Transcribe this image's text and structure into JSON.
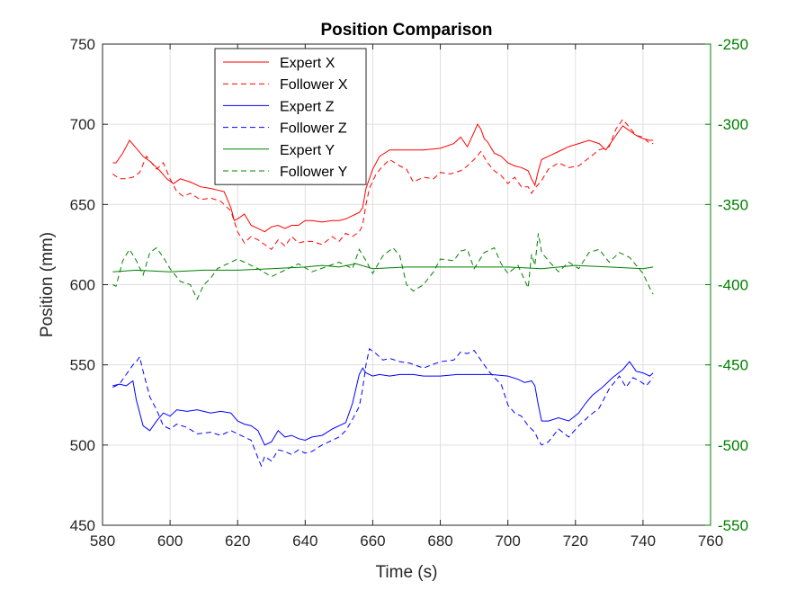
{
  "chart_data": {
    "type": "line",
    "title": "Position Comparison",
    "xlabel": "Time (s)",
    "ylabel": "Position (mm)",
    "ylabel_right": "",
    "xlim": [
      580,
      760
    ],
    "ylim": [
      450,
      750
    ],
    "ylim_right": [
      -550,
      -250
    ],
    "xticks": [
      580,
      600,
      620,
      640,
      660,
      680,
      700,
      720,
      740,
      760
    ],
    "yticks": [
      450,
      500,
      550,
      600,
      650,
      700,
      750
    ],
    "yticks_right": [
      -550,
      -500,
      -450,
      -400,
      -350,
      -300,
      -250
    ],
    "grid": true,
    "legend_position": "top-left",
    "series": [
      {
        "name": "Expert X",
        "axis": "left",
        "color": "#ff0000",
        "dash": "solid",
        "x": [
          583,
          584,
          586,
          588,
          590,
          592,
          594,
          597,
          599,
          601,
          603,
          606,
          609,
          612,
          614,
          616,
          618,
          619,
          620,
          622,
          624,
          626,
          628,
          630,
          632,
          634,
          636,
          638,
          640,
          642,
          645,
          648,
          650,
          652,
          654,
          655,
          656,
          657,
          658,
          660,
          662,
          665,
          668,
          671,
          675,
          680,
          684,
          686,
          688,
          690,
          691,
          692,
          693,
          694,
          696,
          698,
          700,
          702,
          704,
          706,
          707,
          708,
          709,
          710,
          712,
          715,
          718,
          721,
          724,
          727,
          729,
          731,
          732,
          734,
          736,
          738,
          740,
          742,
          743
        ],
        "y": [
          676,
          676,
          682,
          690,
          685,
          680,
          677,
          671,
          666,
          663,
          666,
          664,
          661,
          660,
          659,
          658,
          648,
          640,
          641,
          644,
          637,
          635,
          633,
          636,
          637,
          635,
          637,
          637,
          640,
          640,
          639,
          640,
          640,
          641,
          643,
          644,
          645,
          648,
          660,
          672,
          680,
          684,
          684,
          684,
          684,
          685,
          688,
          692,
          686,
          695,
          700,
          697,
          691,
          689,
          682,
          680,
          676,
          674,
          673,
          671,
          666,
          662,
          671,
          678,
          680,
          683,
          686,
          688,
          690,
          688,
          684,
          690,
          693,
          699,
          696,
          693,
          691,
          690,
          690
        ]
      },
      {
        "name": "Follower X",
        "axis": "left",
        "color": "#ff0000",
        "dash": "dashed",
        "x": [
          583,
          585,
          587,
          589,
          591,
          593,
          596,
          598,
          600,
          602,
          604,
          606,
          609,
          612,
          615,
          618,
          620,
          622,
          624,
          626,
          628,
          630,
          632,
          634,
          636,
          638,
          640,
          642,
          645,
          648,
          650,
          652,
          654,
          656,
          657,
          658,
          659,
          661,
          663,
          665,
          668,
          670,
          672,
          675,
          678,
          680,
          683,
          686,
          688,
          690,
          692,
          694,
          696,
          698,
          700,
          702,
          704,
          706,
          707,
          708,
          710,
          712,
          715,
          718,
          721,
          724,
          727,
          730,
          732,
          734,
          736,
          738,
          740,
          742,
          743
        ],
        "y": [
          669,
          666,
          666,
          667,
          670,
          680,
          672,
          676,
          666,
          658,
          655,
          657,
          653,
          654,
          652,
          646,
          633,
          626,
          630,
          628,
          625,
          622,
          628,
          624,
          630,
          626,
          627,
          627,
          625,
          630,
          627,
          632,
          630,
          633,
          637,
          650,
          660,
          669,
          674,
          678,
          674,
          672,
          664,
          667,
          666,
          670,
          669,
          671,
          674,
          678,
          683,
          676,
          671,
          668,
          663,
          667,
          661,
          661,
          657,
          660,
          665,
          672,
          676,
          673,
          674,
          679,
          684,
          686,
          697,
          703,
          698,
          693,
          692,
          688,
          688
        ]
      },
      {
        "name": "Expert Z",
        "axis": "left",
        "color": "#0000ff",
        "dash": "solid",
        "x": [
          583,
          585,
          587,
          589,
          590,
          592,
          594,
          596,
          598,
          600,
          602,
          605,
          608,
          612,
          615,
          618,
          620,
          622,
          624,
          626,
          628,
          630,
          632,
          634,
          636,
          638,
          640,
          642,
          645,
          648,
          650,
          652,
          654,
          656,
          657,
          658,
          660,
          662,
          665,
          668,
          672,
          675,
          680,
          685,
          690,
          695,
          700,
          703,
          705,
          707,
          708,
          709,
          710,
          712,
          715,
          718,
          721,
          723,
          725,
          728,
          731,
          734,
          736,
          738,
          740,
          742,
          743
        ],
        "y": [
          537,
          538,
          537,
          540,
          528,
          512,
          509,
          515,
          520,
          518,
          522,
          521,
          522,
          520,
          521,
          520,
          515,
          513,
          512,
          509,
          500,
          502,
          509,
          505,
          506,
          504,
          503,
          505,
          506,
          510,
          512,
          514,
          526,
          544,
          548,
          545,
          543,
          544,
          543,
          544,
          544,
          543,
          543,
          544,
          544,
          544,
          543,
          541,
          539,
          540,
          537,
          525,
          515,
          515,
          517,
          515,
          520,
          526,
          531,
          536,
          542,
          547,
          552,
          546,
          545,
          543,
          545
        ]
      },
      {
        "name": "Follower Z",
        "axis": "left",
        "color": "#0000ff",
        "dash": "dashed",
        "x": [
          583,
          585,
          587,
          589,
          590,
          591,
          592,
          594,
          596,
          598,
          600,
          602,
          605,
          608,
          612,
          615,
          618,
          620,
          622,
          624,
          626,
          627,
          628,
          630,
          632,
          634,
          636,
          638,
          640,
          642,
          645,
          648,
          650,
          652,
          654,
          656,
          657,
          658,
          659,
          661,
          663,
          665,
          668,
          671,
          675,
          680,
          684,
          686,
          688,
          690,
          692,
          694,
          696,
          698,
          700,
          702,
          704,
          706,
          708,
          709,
          710,
          712,
          715,
          718,
          721,
          724,
          727,
          730,
          733,
          735,
          737,
          739,
          741,
          743
        ],
        "y": [
          536,
          538,
          544,
          550,
          552,
          555,
          546,
          530,
          522,
          512,
          510,
          513,
          511,
          507,
          508,
          506,
          509,
          507,
          505,
          503,
          492,
          487,
          493,
          490,
          497,
          496,
          494,
          497,
          495,
          496,
          500,
          503,
          505,
          509,
          516,
          524,
          535,
          550,
          560,
          557,
          553,
          554,
          552,
          551,
          548,
          552,
          553,
          558,
          557,
          559,
          553,
          547,
          542,
          538,
          525,
          520,
          518,
          512,
          508,
          503,
          500,
          502,
          510,
          505,
          512,
          518,
          523,
          535,
          543,
          536,
          542,
          540,
          537,
          542
        ]
      },
      {
        "name": "Expert Y",
        "axis": "right",
        "color": "#008000",
        "dash": "solid",
        "x": [
          583,
          590,
          600,
          610,
          620,
          630,
          640,
          645,
          650,
          655,
          660,
          670,
          680,
          690,
          700,
          710,
          720,
          730,
          740,
          743
        ],
        "y": [
          -392,
          -391,
          -392,
          -391,
          -391,
          -390,
          -389,
          -388,
          -389,
          -387,
          -390,
          -389,
          -389,
          -389,
          -389,
          -390,
          -388,
          -389,
          -390,
          -389
        ]
      },
      {
        "name": "Follower Y",
        "axis": "right",
        "color": "#008000",
        "dash": "dashed",
        "x": [
          583,
          584,
          586,
          588,
          590,
          592,
          594,
          596,
          598,
          600,
          603,
          606,
          608,
          610,
          612,
          614,
          616,
          620,
          623,
          626,
          630,
          634,
          638,
          642,
          646,
          650,
          654,
          656,
          658,
          660,
          663,
          666,
          668,
          670,
          672,
          675,
          678,
          680,
          684,
          686,
          688,
          690,
          693,
          696,
          698,
          700,
          703,
          706,
          707,
          708,
          709,
          710,
          712,
          715,
          718,
          721,
          724,
          727,
          730,
          733,
          736,
          740,
          742,
          743
        ],
        "y": [
          -400,
          -401,
          -385,
          -378,
          -385,
          -394,
          -380,
          -377,
          -383,
          -390,
          -398,
          -400,
          -409,
          -400,
          -396,
          -390,
          -388,
          -384,
          -387,
          -390,
          -395,
          -391,
          -387,
          -392,
          -389,
          -386,
          -390,
          -378,
          -385,
          -393,
          -382,
          -377,
          -382,
          -400,
          -404,
          -400,
          -392,
          -384,
          -385,
          -379,
          -378,
          -390,
          -380,
          -377,
          -387,
          -393,
          -388,
          -402,
          -381,
          -388,
          -368,
          -380,
          -385,
          -392,
          -386,
          -390,
          -380,
          -378,
          -386,
          -380,
          -383,
          -393,
          -402,
          -406
        ]
      }
    ]
  }
}
